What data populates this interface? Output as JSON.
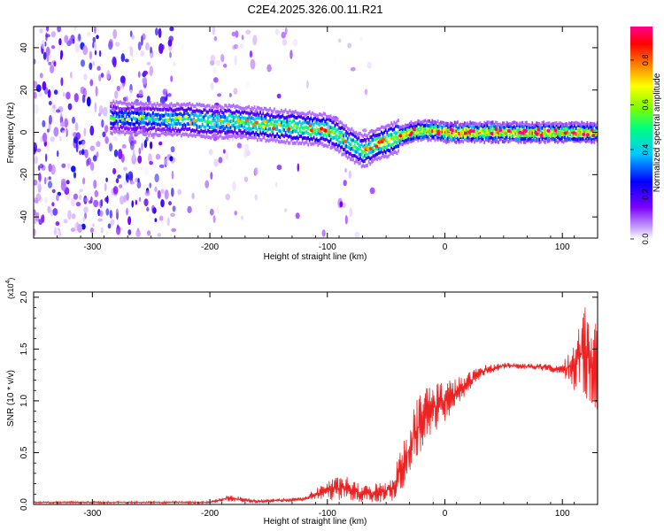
{
  "title": "C2E4.2025.326.00.11.R21",
  "chart_data": [
    {
      "type": "heatmap",
      "xlabel": "Height of straight line (km)",
      "ylabel": "Frequency (Hz)",
      "xlim": [
        -350,
        130
      ],
      "ylim": [
        -50,
        50
      ],
      "xticks": [
        -300,
        -200,
        -100,
        0,
        100
      ],
      "yticks": [
        -40,
        -20,
        0,
        20,
        40
      ],
      "colorbar": {
        "label": "Normalized spectral amplitude",
        "range": [
          0,
          0.95
        ],
        "ticks": [
          "0.0",
          "0.2",
          "0.4",
          "0.6",
          "0.8"
        ],
        "colormap": [
          "#ffffff",
          "#7a00ff",
          "#0000ff",
          "#00c8ff",
          "#00ff80",
          "#80ff00",
          "#ffff00",
          "#ff8000",
          "#ff0000",
          "#ff0090"
        ]
      },
      "ridge": [
        {
          "x": -280,
          "y": 7,
          "amp": 0.35
        },
        {
          "x": -240,
          "y": 6,
          "amp": 0.4
        },
        {
          "x": -220,
          "y": 6,
          "amp": 0.45
        },
        {
          "x": -200,
          "y": 5,
          "amp": 0.5
        },
        {
          "x": -180,
          "y": 5,
          "amp": 0.5
        },
        {
          "x": -160,
          "y": 4,
          "amp": 0.55
        },
        {
          "x": -140,
          "y": 3,
          "amp": 0.55
        },
        {
          "x": -120,
          "y": 2,
          "amp": 0.6
        },
        {
          "x": -100,
          "y": 1,
          "amp": 0.6
        },
        {
          "x": -90,
          "y": -2,
          "amp": 0.55
        },
        {
          "x": -80,
          "y": -6,
          "amp": 0.55
        },
        {
          "x": -70,
          "y": -9,
          "amp": 0.55
        },
        {
          "x": -60,
          "y": -6,
          "amp": 0.6
        },
        {
          "x": -50,
          "y": -4,
          "amp": 0.65
        },
        {
          "x": -40,
          "y": -2,
          "amp": 0.7
        },
        {
          "x": -30,
          "y": 0,
          "amp": 0.75
        },
        {
          "x": -20,
          "y": 1,
          "amp": 0.8
        },
        {
          "x": -10,
          "y": 1,
          "amp": 0.85
        },
        {
          "x": 0,
          "y": 0,
          "amp": 0.9
        },
        {
          "x": 50,
          "y": 0,
          "amp": 0.85
        },
        {
          "x": 100,
          "y": 0,
          "amp": 0.8
        },
        {
          "x": 130,
          "y": 0,
          "amp": 0.8
        }
      ]
    },
    {
      "type": "line",
      "xlabel": "Height of straight line (km)",
      "ylabel": "SNR (10 * v/v)",
      "yscale_label": "(x10",
      "yscale_exp": "4",
      "xlim": [
        -350,
        130
      ],
      "ylim": [
        0,
        2.05
      ],
      "xticks": [
        -300,
        -200,
        -100,
        0,
        100
      ],
      "yticks": [
        "0.0",
        "0.5",
        "1.0",
        "1.5",
        "2.0"
      ],
      "color": "#ee2222",
      "profile": [
        {
          "x": -350,
          "y": 0.02,
          "noise": 0.01
        },
        {
          "x": -200,
          "y": 0.02,
          "noise": 0.01
        },
        {
          "x": -185,
          "y": 0.06,
          "noise": 0.03
        },
        {
          "x": -160,
          "y": 0.03,
          "noise": 0.02
        },
        {
          "x": -120,
          "y": 0.05,
          "noise": 0.02
        },
        {
          "x": -100,
          "y": 0.14,
          "noise": 0.1
        },
        {
          "x": -85,
          "y": 0.16,
          "noise": 0.12
        },
        {
          "x": -70,
          "y": 0.1,
          "noise": 0.08
        },
        {
          "x": -55,
          "y": 0.12,
          "noise": 0.1
        },
        {
          "x": -45,
          "y": 0.15,
          "noise": 0.12
        },
        {
          "x": -35,
          "y": 0.4,
          "noise": 0.25
        },
        {
          "x": -25,
          "y": 0.7,
          "noise": 0.3
        },
        {
          "x": -15,
          "y": 0.9,
          "noise": 0.3
        },
        {
          "x": 0,
          "y": 1.0,
          "noise": 0.2
        },
        {
          "x": 15,
          "y": 1.12,
          "noise": 0.12
        },
        {
          "x": 30,
          "y": 1.28,
          "noise": 0.06
        },
        {
          "x": 50,
          "y": 1.34,
          "noise": 0.03
        },
        {
          "x": 80,
          "y": 1.33,
          "noise": 0.03
        },
        {
          "x": 100,
          "y": 1.3,
          "noise": 0.05
        },
        {
          "x": 110,
          "y": 1.35,
          "noise": 0.25
        },
        {
          "x": 120,
          "y": 1.5,
          "noise": 0.5
        },
        {
          "x": 130,
          "y": 1.3,
          "noise": 0.4
        }
      ]
    }
  ]
}
